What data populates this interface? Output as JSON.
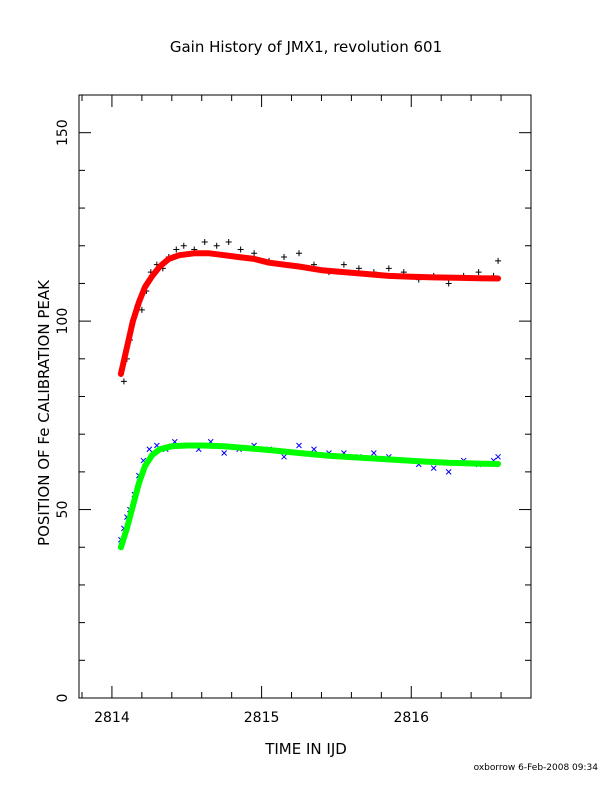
{
  "chart_data": {
    "type": "scatter",
    "title": "Gain History of JMX1, revolution 601",
    "xlabel": "TIME IN IJD",
    "ylabel": "POSITION OF Fe CALIBRATION PEAK",
    "xlim": [
      2813.78,
      2816.8
    ],
    "ylim": [
      0,
      160
    ],
    "x_ticks": [
      "2814",
      "2815",
      "2816"
    ],
    "y_ticks": [
      "0",
      "50",
      "100",
      "150"
    ],
    "x_minor_step": 0.2,
    "y_minor_step": 10,
    "grid": false,
    "colors": {
      "upper_points": "#000000",
      "upper_fit": "#ff0000",
      "lower_points": "#0000ff",
      "lower_fit": "#00ff00",
      "frame": "#000000"
    },
    "series": [
      {
        "marker": "plus",
        "color": "#000000",
        "x": [
          2814.06,
          2814.08,
          2814.1,
          2814.12,
          2814.14,
          2814.17,
          2814.2,
          2814.23,
          2814.26,
          2814.3,
          2814.34,
          2814.38,
          2814.43,
          2814.48,
          2814.55,
          2814.62,
          2814.7,
          2814.78,
          2814.86,
          2814.95,
          2815.05,
          2815.15,
          2815.25,
          2815.35,
          2815.45,
          2815.55,
          2815.65,
          2815.75,
          2815.85,
          2815.95,
          2816.05,
          2816.15,
          2816.25,
          2816.35,
          2816.45,
          2816.55,
          2816.58
        ],
        "y": [
          86,
          84,
          90,
          95,
          100,
          104,
          103,
          108,
          113,
          115,
          114,
          117,
          119,
          120,
          119,
          121,
          120,
          121,
          119,
          118,
          116,
          117,
          118,
          115,
          113,
          115,
          114,
          113,
          114,
          113,
          111,
          112,
          110,
          112,
          113,
          112,
          116
        ]
      },
      {
        "marker": "line",
        "color": "#ff0000",
        "x": [
          2814.06,
          2814.1,
          2814.14,
          2814.18,
          2814.22,
          2814.27,
          2814.32,
          2814.38,
          2814.45,
          2814.55,
          2814.65,
          2814.75,
          2814.85,
          2814.95,
          2815.05,
          2815.15,
          2815.25,
          2815.4,
          2815.55,
          2815.7,
          2815.85,
          2816.0,
          2816.15,
          2816.3,
          2816.45,
          2816.58
        ],
        "y": [
          86,
          93,
          100,
          105,
          109,
          112,
          114.5,
          116.5,
          117.5,
          118,
          118,
          117.5,
          117,
          116.5,
          115.5,
          115,
          114.5,
          113.5,
          113,
          112.5,
          112,
          111.8,
          111.6,
          111.5,
          111.4,
          111.3
        ]
      },
      {
        "marker": "cross",
        "color": "#0000ff",
        "x": [
          2814.06,
          2814.08,
          2814.1,
          2814.12,
          2814.15,
          2814.18,
          2814.21,
          2814.25,
          2814.3,
          2814.36,
          2814.42,
          2814.5,
          2814.58,
          2814.66,
          2814.75,
          2814.85,
          2814.95,
          2815.05,
          2815.15,
          2815.25,
          2815.35,
          2815.45,
          2815.55,
          2815.65,
          2815.75,
          2815.85,
          2815.95,
          2816.05,
          2816.15,
          2816.25,
          2816.35,
          2816.45,
          2816.55,
          2816.58
        ],
        "y": [
          42,
          45,
          48,
          50,
          54,
          59,
          63,
          66,
          67,
          66,
          68,
          67,
          66,
          68,
          65,
          66,
          67,
          66,
          64,
          67,
          66,
          65,
          65,
          64,
          65,
          64,
          63,
          62,
          61,
          60,
          63,
          62,
          63,
          64
        ]
      },
      {
        "marker": "line",
        "color": "#00ff00",
        "x": [
          2814.06,
          2814.1,
          2814.14,
          2814.18,
          2814.22,
          2814.27,
          2814.32,
          2814.4,
          2814.5,
          2814.6,
          2814.75,
          2814.9,
          2815.05,
          2815.25,
          2815.45,
          2815.65,
          2815.85,
          2816.05,
          2816.25,
          2816.45,
          2816.58
        ],
        "y": [
          40,
          45,
          51,
          57,
          61.5,
          64.5,
          66,
          66.8,
          67,
          67,
          66.8,
          66.3,
          65.8,
          65,
          64.3,
          63.8,
          63.3,
          62.8,
          62.4,
          62.2,
          62.1
        ]
      }
    ]
  },
  "footer": {
    "credit": "oxborrow  6-Feb-2008 09:34"
  }
}
